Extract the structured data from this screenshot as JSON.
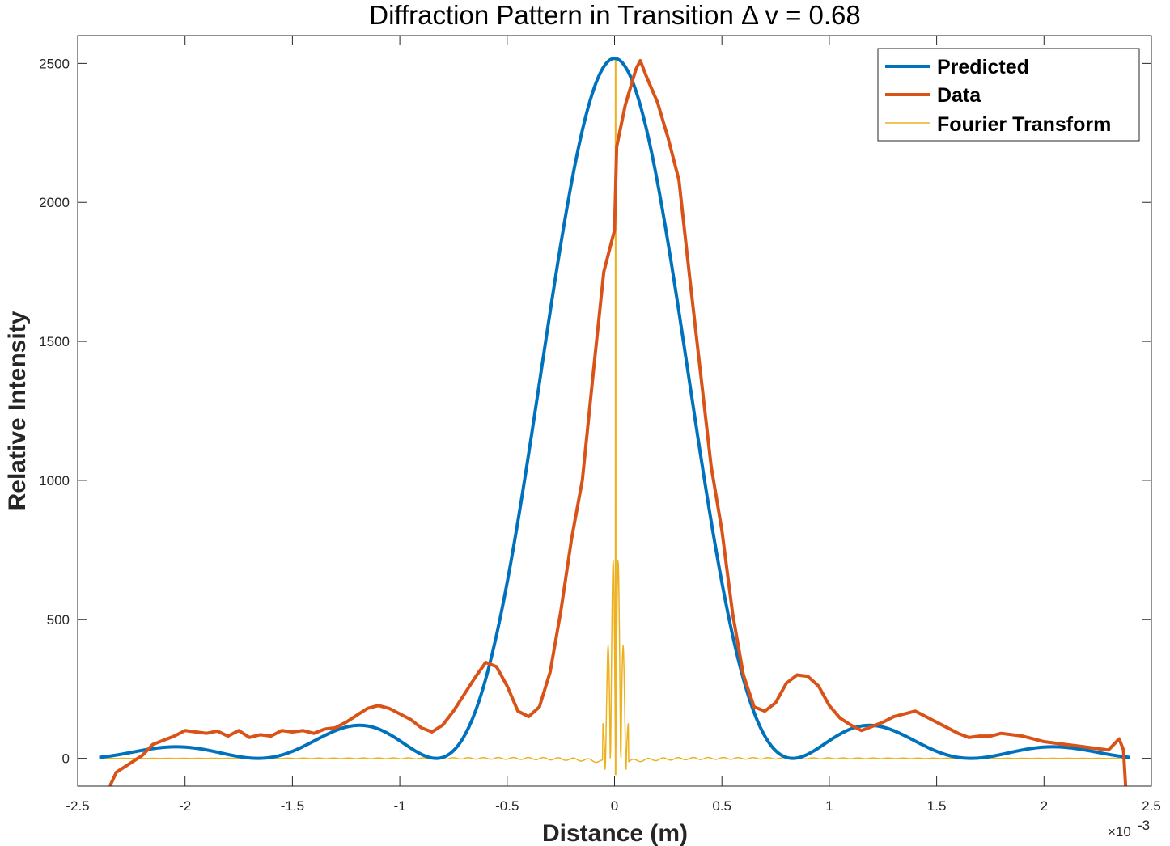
{
  "chart_data": {
    "type": "line",
    "title": "Diffraction Pattern in Transition Δ v = 0.68",
    "xlabel": "Distance (m)",
    "ylabel": "Relative Intensity",
    "x_exponent_label": "×10",
    "x_exponent_power": "-3",
    "x_scale": 0.001,
    "xlim": [
      -0.0025,
      0.0025
    ],
    "ylim": [
      -100,
      2600
    ],
    "x_ticks": [
      -0.0025,
      -0.002,
      -0.0015,
      -0.001,
      -0.0005,
      0,
      0.0005,
      0.001,
      0.0015,
      0.002,
      0.0025
    ],
    "x_tick_labels": [
      "-2.5",
      "-2",
      "-1.5",
      "-1",
      "-0.5",
      "0",
      "0.5",
      "1",
      "1.5",
      "2",
      "2.5"
    ],
    "y_ticks": [
      0,
      500,
      1000,
      1500,
      2000,
      2500
    ],
    "y_tick_labels": [
      "0",
      "500",
      "1000",
      "1500",
      "2000",
      "2500"
    ],
    "grid": false,
    "legend_position": "top-right",
    "series": [
      {
        "name": "Predicted",
        "color": "#0072BD",
        "line_width": 4,
        "model": "sinc-squared",
        "amplitude": 2518,
        "first_zero": 0.00083,
        "x_range": [
          -0.0024,
          0.0024
        ]
      },
      {
        "name": "Data",
        "color": "#D95319",
        "line_width": 4,
        "points": [
          [
            -0.00235,
            -100
          ],
          [
            -0.00232,
            -50
          ],
          [
            -0.00228,
            -30
          ],
          [
            -0.00224,
            -10
          ],
          [
            -0.0022,
            10
          ],
          [
            -0.00215,
            50
          ],
          [
            -0.0021,
            65
          ],
          [
            -0.00205,
            80
          ],
          [
            -0.002,
            100
          ],
          [
            -0.00195,
            95
          ],
          [
            -0.0019,
            90
          ],
          [
            -0.00185,
            98
          ],
          [
            -0.0018,
            80
          ],
          [
            -0.00175,
            100
          ],
          [
            -0.0017,
            75
          ],
          [
            -0.00165,
            85
          ],
          [
            -0.0016,
            80
          ],
          [
            -0.00155,
            100
          ],
          [
            -0.0015,
            95
          ],
          [
            -0.00145,
            100
          ],
          [
            -0.0014,
            90
          ],
          [
            -0.00135,
            105
          ],
          [
            -0.0013,
            110
          ],
          [
            -0.00125,
            130
          ],
          [
            -0.0012,
            155
          ],
          [
            -0.00115,
            180
          ],
          [
            -0.0011,
            190
          ],
          [
            -0.00105,
            180
          ],
          [
            -0.001,
            160
          ],
          [
            -0.00095,
            140
          ],
          [
            -0.0009,
            110
          ],
          [
            -0.00085,
            95
          ],
          [
            -0.0008,
            120
          ],
          [
            -0.00075,
            170
          ],
          [
            -0.0007,
            230
          ],
          [
            -0.00065,
            290
          ],
          [
            -0.0006,
            345
          ],
          [
            -0.00055,
            330
          ],
          [
            -0.0005,
            260
          ],
          [
            -0.00045,
            170
          ],
          [
            -0.0004,
            150
          ],
          [
            -0.00035,
            185
          ],
          [
            -0.0003,
            310
          ],
          [
            -0.00025,
            530
          ],
          [
            -0.0002,
            790
          ],
          [
            -0.00015,
            1000
          ],
          [
            -0.0001,
            1380
          ],
          [
            -5e-05,
            1750
          ],
          [
            0,
            1900
          ],
          [
            1e-05,
            2200
          ],
          [
            5e-05,
            2350
          ],
          [
            0.0001,
            2480
          ],
          [
            0.00012,
            2510
          ],
          [
            0.00015,
            2450
          ],
          [
            0.0002,
            2360
          ],
          [
            0.00025,
            2230
          ],
          [
            0.0003,
            2080
          ],
          [
            0.00035,
            1730
          ],
          [
            0.0004,
            1390
          ],
          [
            0.00045,
            1050
          ],
          [
            0.0005,
            820
          ],
          [
            0.00055,
            520
          ],
          [
            0.0006,
            300
          ],
          [
            0.00065,
            185
          ],
          [
            0.0007,
            170
          ],
          [
            0.00075,
            200
          ],
          [
            0.0008,
            270
          ],
          [
            0.00085,
            300
          ],
          [
            0.0009,
            295
          ],
          [
            0.00095,
            260
          ],
          [
            0.001,
            190
          ],
          [
            0.00105,
            145
          ],
          [
            0.0011,
            120
          ],
          [
            0.00115,
            100
          ],
          [
            0.0012,
            115
          ],
          [
            0.00125,
            130
          ],
          [
            0.0013,
            150
          ],
          [
            0.00135,
            160
          ],
          [
            0.0014,
            170
          ],
          [
            0.00145,
            150
          ],
          [
            0.0015,
            130
          ],
          [
            0.00155,
            110
          ],
          [
            0.0016,
            90
          ],
          [
            0.00165,
            75
          ],
          [
            0.0017,
            80
          ],
          [
            0.00175,
            80
          ],
          [
            0.0018,
            90
          ],
          [
            0.00185,
            85
          ],
          [
            0.0019,
            80
          ],
          [
            0.00195,
            70
          ],
          [
            0.002,
            60
          ],
          [
            0.00205,
            55
          ],
          [
            0.0021,
            50
          ],
          [
            0.00215,
            45
          ],
          [
            0.0022,
            40
          ],
          [
            0.00225,
            35
          ],
          [
            0.0023,
            30
          ],
          [
            0.00235,
            70
          ],
          [
            0.00237,
            30
          ],
          [
            0.00238,
            -100
          ]
        ]
      },
      {
        "name": "Fourier Transform",
        "color": "#EDB120",
        "line_width": 1.5,
        "model": "sharp-central-peak",
        "peak_x": 5e-06,
        "peak_y": 2518,
        "side_peak_y": 770,
        "x_range": [
          -0.0024,
          0.0024
        ]
      }
    ]
  }
}
